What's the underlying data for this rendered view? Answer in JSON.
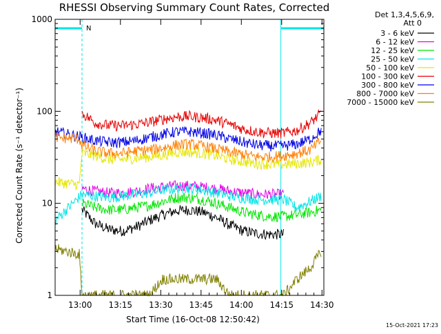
{
  "chart_data": {
    "type": "line",
    "title": "RHESSI Observing Summary Count Rates, Corrected",
    "xlabel": "Start Time (16-Oct-08 12:50:42)",
    "ylabel": "Corrected Count Rate (s⁻¹ detector⁻¹)",
    "yscale": "log",
    "ylim": [
      1,
      1000
    ],
    "xlim_minutes_after_start": [
      0,
      100
    ],
    "y_ticks": [
      {
        "value": 1,
        "label": "1"
      },
      {
        "value": 10,
        "label": "10"
      },
      {
        "value": 100,
        "label": "100"
      },
      {
        "value": 1000,
        "label": "1000"
      }
    ],
    "x_ticks": [
      {
        "minute": 9.3,
        "label": "13:00"
      },
      {
        "minute": 24.3,
        "label": "13:15"
      },
      {
        "minute": 39.3,
        "label": "13:30"
      },
      {
        "minute": 54.3,
        "label": "13:45"
      },
      {
        "minute": 69.3,
        "label": "14:00"
      },
      {
        "minute": 84.3,
        "label": "14:15"
      },
      {
        "minute": 99.3,
        "label": "14:30"
      }
    ],
    "legend_header": [
      "Det 1,3,4,5,6,9,",
      "Att 0"
    ],
    "legend_position": "right",
    "flag_label": "N",
    "footer_timestamp": "15-Oct-2021 17:23",
    "grid": false,
    "shaded_regions": [
      {
        "start_minute": 0,
        "end_minute": 10,
        "color": "#00e5e5",
        "label": "night"
      },
      {
        "start_minute": 84,
        "end_minute": 100,
        "color": "#00e5e5",
        "label": "night"
      }
    ],
    "series": [
      {
        "name": "3 - 6 keV",
        "color": "#000000",
        "x": [
          10,
          15,
          20,
          25,
          30,
          35,
          40,
          45,
          50,
          55,
          60,
          65,
          70,
          75,
          80,
          85
        ],
        "values": [
          8.5,
          6.0,
          5.2,
          5.0,
          5.5,
          6.5,
          7.5,
          8.3,
          8.5,
          8.0,
          7.0,
          5.8,
          5.0,
          4.7,
          4.6,
          4.6
        ]
      },
      {
        "name": "6 - 12 keV",
        "color": "#e600e6",
        "x": [
          10,
          15,
          20,
          25,
          30,
          35,
          40,
          45,
          50,
          55,
          60,
          65,
          70,
          75,
          80,
          85
        ],
        "values": [
          14.5,
          13.5,
          13.0,
          13.0,
          13.5,
          14.5,
          15.0,
          15.5,
          15.5,
          15.0,
          14.5,
          13.5,
          13.0,
          12.5,
          12.5,
          12.5
        ]
      },
      {
        "name": "12 - 25 keV",
        "color": "#00e600",
        "x": [
          10,
          15,
          20,
          25,
          30,
          35,
          40,
          45,
          50,
          55,
          60,
          65,
          70,
          75,
          80,
          85,
          90,
          95,
          99
        ],
        "values": [
          10.0,
          9.0,
          8.5,
          8.5,
          9.0,
          9.5,
          10.5,
          11.5,
          11.5,
          11.0,
          10.0,
          9.0,
          8.0,
          7.5,
          7.2,
          7.2,
          7.5,
          8.0,
          8.5
        ]
      },
      {
        "name": "25 - 50 keV",
        "color": "#00e5e5",
        "x": [
          0,
          10,
          15,
          20,
          25,
          30,
          35,
          40,
          45,
          50,
          55,
          60,
          65,
          70,
          75,
          80,
          85,
          90,
          95,
          99
        ],
        "values": [
          6.5,
          12.5,
          12.0,
          11.5,
          12.0,
          12.5,
          13.0,
          14.0,
          14.5,
          14.5,
          14.0,
          13.0,
          12.0,
          11.5,
          11.0,
          11.0,
          11.0,
          9.0,
          10.5,
          12.0
        ]
      },
      {
        "name": "50 - 100 keV",
        "color": "#e6e600",
        "x": [
          0,
          9,
          10,
          15,
          20,
          25,
          30,
          35,
          40,
          45,
          50,
          55,
          60,
          65,
          70,
          75,
          80,
          85,
          90,
          95,
          99
        ],
        "values": [
          17.0,
          16.0,
          35.0,
          33.0,
          30.0,
          30.0,
          31.0,
          32.0,
          33.5,
          36.0,
          36.0,
          35.0,
          33.0,
          30.0,
          28.5,
          27.0,
          26.5,
          26.5,
          27.0,
          28.0,
          30.0
        ]
      },
      {
        "name": "100 - 300 keV",
        "color": "#e60000",
        "x": [
          10,
          15,
          20,
          25,
          30,
          35,
          40,
          45,
          50,
          55,
          60,
          65,
          70,
          75,
          80,
          85,
          90,
          95,
          99
        ],
        "values": [
          95,
          75,
          70,
          70,
          72,
          76,
          82,
          87,
          88,
          85,
          80,
          72,
          64,
          60,
          58,
          58,
          62,
          75,
          95
        ]
      },
      {
        "name": "300 - 800 keV",
        "color": "#0000e6",
        "x": [
          0,
          9,
          10,
          15,
          20,
          25,
          30,
          35,
          40,
          45,
          50,
          55,
          60,
          65,
          70,
          75,
          80,
          85,
          90,
          95,
          99
        ],
        "values": [
          60,
          53,
          52,
          48,
          46,
          46,
          48,
          52,
          56,
          60,
          60,
          58,
          55,
          50,
          46,
          43,
          42,
          42,
          44,
          50,
          62
        ]
      },
      {
        "name": "800 - 7000 keV",
        "color": "#ff8000",
        "x": [
          0,
          9,
          10,
          15,
          20,
          25,
          30,
          35,
          40,
          45,
          50,
          55,
          60,
          65,
          70,
          75,
          80,
          85,
          90,
          95,
          99
        ],
        "values": [
          52,
          50,
          43,
          37,
          35,
          35,
          37,
          38,
          40,
          43,
          44,
          42,
          39,
          36,
          34,
          32,
          32,
          33,
          35,
          38,
          48
        ]
      },
      {
        "name": "7000 - 15000 keV",
        "color": "#808000",
        "x": [
          0,
          9,
          10,
          15,
          20,
          25,
          30,
          35,
          40,
          45,
          50,
          55,
          60,
          65,
          70,
          75,
          80,
          85,
          90,
          95,
          99
        ],
        "values": [
          3.2,
          2.8,
          1.0,
          1.0,
          1.0,
          1.0,
          1.0,
          1.0,
          1.5,
          1.5,
          1.5,
          1.5,
          1.5,
          1.0,
          1.0,
          1.0,
          1.0,
          1.0,
          1.5,
          2.0,
          3.0
        ]
      }
    ]
  }
}
